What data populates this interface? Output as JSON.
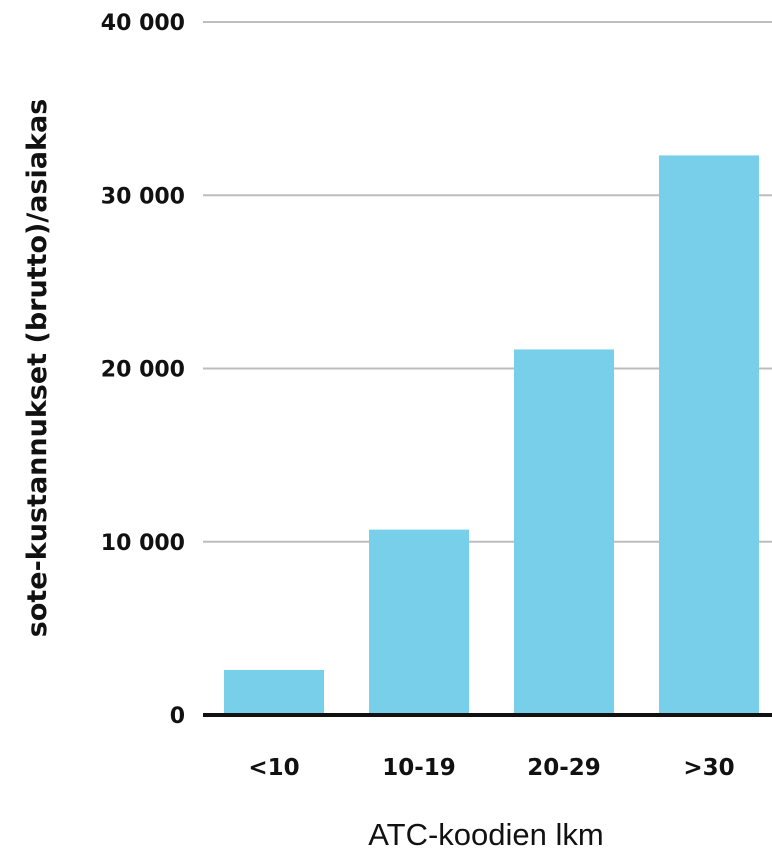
{
  "chart_data": {
    "type": "bar",
    "categories": [
      "<10",
      "10-19",
      "20-29",
      ">30"
    ],
    "values": [
      2600,
      10700,
      21100,
      32300
    ],
    "xlabel": "ATC-koodien lkm",
    "ylabel": "sote-kustannukset (brutto)/asiakas",
    "ylim": [
      0,
      40000
    ],
    "yticks": [
      0,
      10000,
      20000,
      30000,
      40000
    ],
    "ytick_labels": [
      "0",
      "10 000",
      "20 000",
      "30 000",
      "40 000"
    ],
    "grid": true,
    "legend": "none",
    "colors": {
      "bar": "#78CFEA",
      "grid": "#BDBDBD",
      "axis": "#111111",
      "text": "#111111"
    }
  }
}
